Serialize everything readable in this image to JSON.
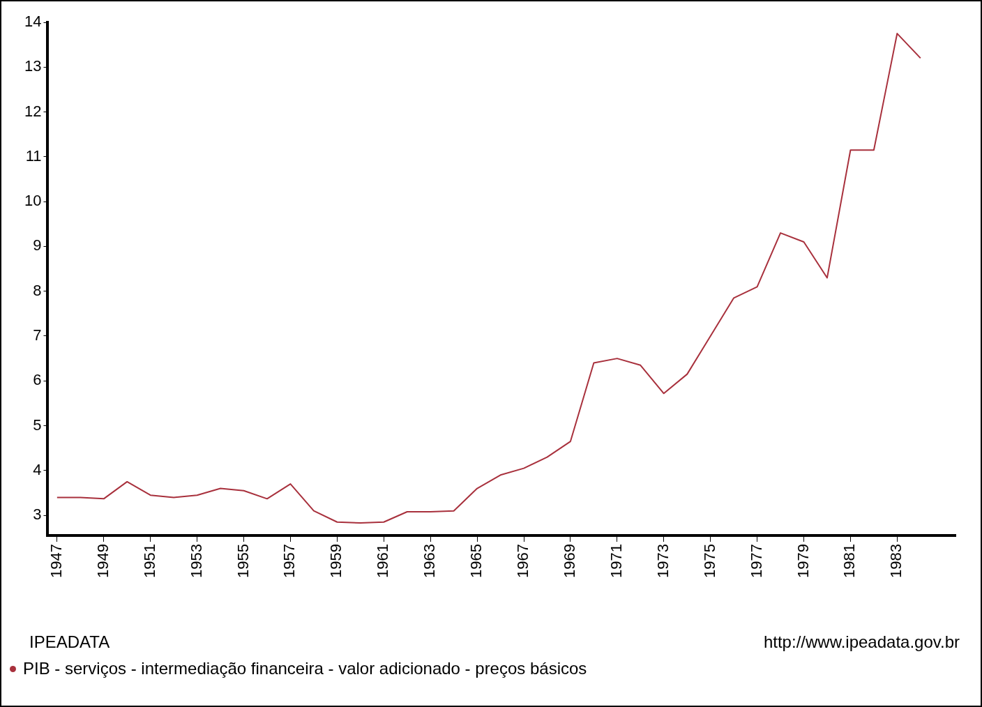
{
  "chart_data": {
    "type": "line",
    "x": [
      1947,
      1948,
      1949,
      1950,
      1951,
      1952,
      1953,
      1954,
      1955,
      1956,
      1957,
      1958,
      1959,
      1960,
      1961,
      1962,
      1963,
      1964,
      1965,
      1966,
      1967,
      1968,
      1969,
      1970,
      1971,
      1972,
      1973,
      1974,
      1975,
      1976,
      1977,
      1978,
      1979,
      1980,
      1981,
      1982,
      1983,
      1984
    ],
    "series": [
      {
        "name": "PIB - serviços - intermediação financeira - valor adicionado - preços básicos",
        "color": "#a8303c",
        "values": [
          3.4,
          3.4,
          3.37,
          3.75,
          3.45,
          3.4,
          3.45,
          3.6,
          3.55,
          3.37,
          3.7,
          3.1,
          2.85,
          2.83,
          2.85,
          3.08,
          3.08,
          3.1,
          3.6,
          3.9,
          4.05,
          4.3,
          4.65,
          6.4,
          6.5,
          6.35,
          5.72,
          6.15,
          7.0,
          7.85,
          8.1,
          9.3,
          9.1,
          8.3,
          11.15,
          11.15,
          13.75,
          13.2
        ]
      }
    ],
    "xlim": [
      1946.6,
      1985.5
    ],
    "xticks": [
      1947,
      1949,
      1951,
      1953,
      1955,
      1957,
      1959,
      1961,
      1963,
      1965,
      1967,
      1969,
      1971,
      1973,
      1975,
      1977,
      1979,
      1981,
      1983
    ],
    "ylim": [
      2.55,
      14
    ],
    "yticks": [
      3,
      4,
      5,
      6,
      7,
      8,
      9,
      10,
      11,
      12,
      13,
      14
    ],
    "grid": false,
    "legend": "bottom left",
    "marker": "none",
    "line_style": "solid",
    "annotations": [
      "IPEADATA",
      "http://www.ipeadata.gov.br"
    ]
  }
}
